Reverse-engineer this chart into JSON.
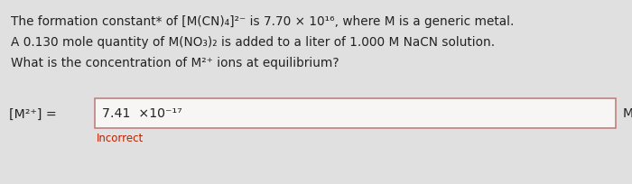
{
  "bg_color": "#e0e0e0",
  "line1": "The formation constant* of [M(CN)₄]²⁻ is 7.70 × 10¹⁶, where M is a generic metal.",
  "line2": "A 0.130 mole quantity of M(NO₃)₂ is added to a liter of 1.000 M NaCN solution.",
  "line3": "What is the concentration of M²⁺ ions at equilibrium?",
  "label_left": "[M²⁺] =",
  "answer_text": "7.41  ×10⁻¹⁷",
  "incorrect_text": "Incorrect",
  "unit_text": "M",
  "text_color": "#222222",
  "incorrect_color": "#bb2200",
  "box_border_color": "#c08080",
  "box_fill_color": "#f8f5f5",
  "font_size_main": 9.8,
  "font_size_answer": 10.2,
  "font_size_incorrect": 8.5
}
